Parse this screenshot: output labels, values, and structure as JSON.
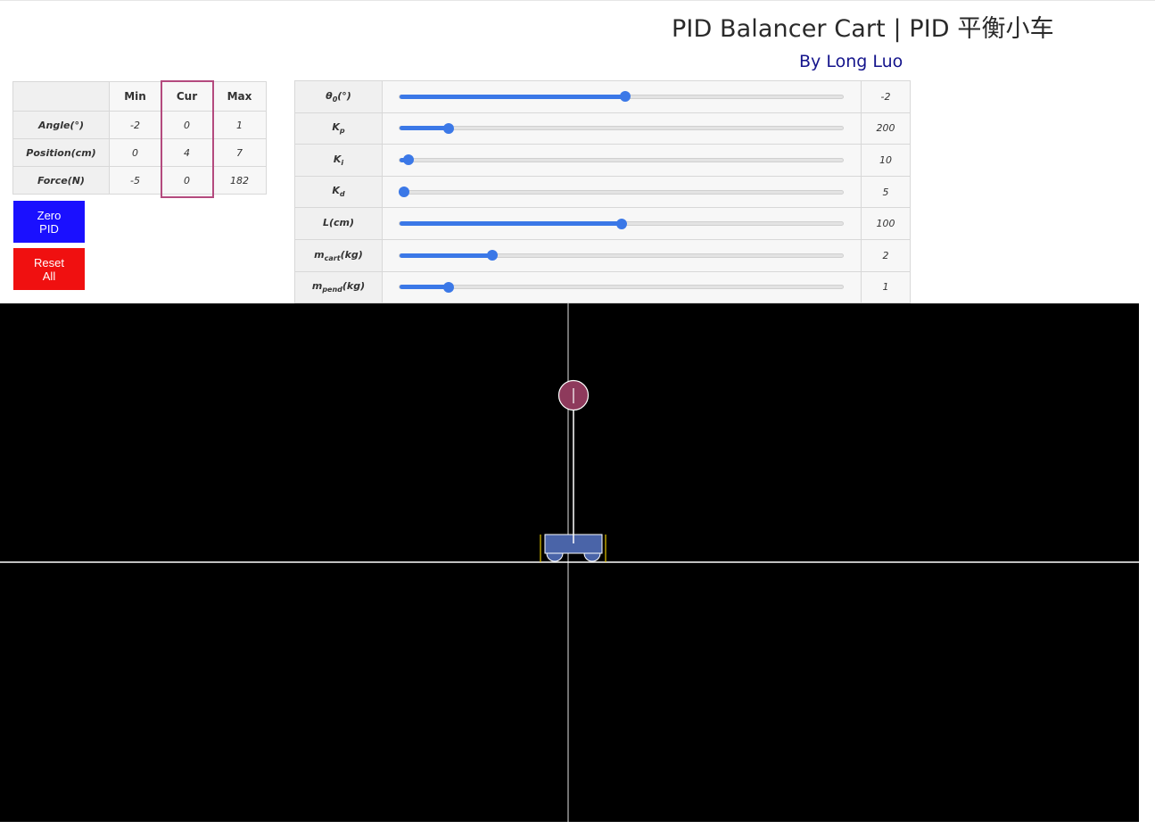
{
  "header": {
    "title": "PID Balancer Cart | PID 平衡小车",
    "author": "By Long Luo"
  },
  "stats": {
    "columns": [
      "",
      "Min",
      "Cur",
      "Max"
    ],
    "rows": [
      {
        "label": "Angle(°)",
        "min": "-2",
        "cur": "0",
        "max": "1"
      },
      {
        "label": "Position(cm)",
        "min": "0",
        "cur": "4",
        "max": "7"
      },
      {
        "label": "Force(N)",
        "min": "-5",
        "cur": "0",
        "max": "182"
      }
    ]
  },
  "buttons": {
    "zero_line1": "Zero",
    "zero_line2": "PID",
    "reset_line1": "Reset",
    "reset_line2": "All",
    "zero_color": "#1a10ff",
    "reset_color": "#f01010"
  },
  "params": [
    {
      "label_main": "θ",
      "label_sub": "0",
      "label_suffix": "(°)",
      "value": "-2",
      "fraction": 0.51
    },
    {
      "label_main": "K",
      "label_sub": "p",
      "label_suffix": "",
      "value": "200",
      "fraction": 0.11
    },
    {
      "label_main": "K",
      "label_sub": "i",
      "label_suffix": "",
      "value": "10",
      "fraction": 0.02
    },
    {
      "label_main": "K",
      "label_sub": "d",
      "label_suffix": "",
      "value": "5",
      "fraction": 0.01
    },
    {
      "label_main": "L",
      "label_sub": "",
      "label_suffix": "(cm)",
      "value": "100",
      "fraction": 0.5
    },
    {
      "label_main": "m",
      "label_sub": "cart",
      "label_suffix": "(kg)",
      "value": "2",
      "fraction": 0.21
    },
    {
      "label_main": "m",
      "label_sub": "pend",
      "label_suffix": "(kg)",
      "value": "1",
      "fraction": 0.11
    }
  ],
  "colors": {
    "slider_accent": "#3b78e7",
    "cur_highlight": "#b44a7e",
    "pendulum_bob": "#8e3a5c",
    "cart_body": "#4a64a8",
    "limit_marker": "#e8c800",
    "sim_background": "#000000"
  }
}
